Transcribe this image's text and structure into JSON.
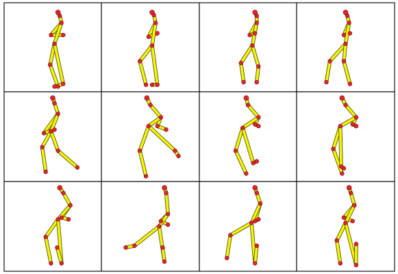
{
  "figure": {
    "rows": 3,
    "cols": 4,
    "colors": {
      "bone_outline": "#5a5a1c",
      "bone_fill": "#f6f600",
      "joint": "#e2242c",
      "joint_outline": "#8e1418",
      "grid_line": "#111111",
      "background": "#ffffff"
    }
  },
  "poses": [
    {
      "joints": [
        [
          0.56,
          0.1
        ],
        [
          0.58,
          0.14
        ],
        [
          0.6,
          0.22
        ],
        [
          0.62,
          0.36
        ],
        [
          0.48,
          0.36
        ],
        [
          0.52,
          0.46
        ],
        [
          0.47,
          0.7
        ],
        [
          0.56,
          0.95
        ],
        [
          0.52,
          0.95
        ],
        [
          0.62,
          0.92
        ]
      ]
    },
    {
      "joints": [
        [
          0.52,
          0.1
        ],
        [
          0.54,
          0.13
        ],
        [
          0.56,
          0.22
        ],
        [
          0.58,
          0.34
        ],
        [
          0.48,
          0.38
        ],
        [
          0.52,
          0.48
        ],
        [
          0.38,
          0.66
        ],
        [
          0.45,
          0.93
        ],
        [
          0.52,
          0.93
        ],
        [
          0.58,
          0.93
        ]
      ]
    },
    {
      "joints": [
        [
          0.58,
          0.1
        ],
        [
          0.6,
          0.14
        ],
        [
          0.6,
          0.22
        ],
        [
          0.58,
          0.34
        ],
        [
          0.52,
          0.36
        ],
        [
          0.55,
          0.48
        ],
        [
          0.42,
          0.68
        ],
        [
          0.45,
          0.9
        ],
        [
          0.6,
          0.9
        ],
        [
          0.62,
          0.72
        ]
      ]
    },
    {
      "joints": [
        [
          0.5,
          0.1
        ],
        [
          0.52,
          0.14
        ],
        [
          0.54,
          0.22
        ],
        [
          0.55,
          0.34
        ],
        [
          0.48,
          0.36
        ],
        [
          0.5,
          0.46
        ],
        [
          0.32,
          0.66
        ],
        [
          0.28,
          0.9
        ],
        [
          0.55,
          0.92
        ],
        [
          0.48,
          0.66
        ]
      ]
    },
    {
      "joints": [
        [
          0.5,
          0.06
        ],
        [
          0.52,
          0.12
        ],
        [
          0.56,
          0.24
        ],
        [
          0.52,
          0.42
        ],
        [
          0.4,
          0.46
        ],
        [
          0.48,
          0.44
        ],
        [
          0.38,
          0.62
        ],
        [
          0.42,
          0.9
        ],
        [
          0.78,
          0.85
        ],
        [
          0.56,
          0.66
        ]
      ]
    },
    {
      "joints": [
        [
          0.46,
          0.06
        ],
        [
          0.5,
          0.14
        ],
        [
          0.62,
          0.28
        ],
        [
          0.68,
          0.42
        ],
        [
          0.58,
          0.38
        ],
        [
          0.48,
          0.38
        ],
        [
          0.38,
          0.66
        ],
        [
          0.45,
          0.95
        ],
        [
          0.82,
          0.72
        ],
        [
          0.78,
          0.66
        ]
      ]
    },
    {
      "joints": [
        [
          0.48,
          0.06
        ],
        [
          0.5,
          0.14
        ],
        [
          0.62,
          0.28
        ],
        [
          0.62,
          0.38
        ],
        [
          0.58,
          0.36
        ],
        [
          0.44,
          0.4
        ],
        [
          0.36,
          0.66
        ],
        [
          0.48,
          0.92
        ],
        [
          0.6,
          0.78
        ],
        [
          0.56,
          0.8
        ]
      ]
    },
    {
      "joints": [
        [
          0.46,
          0.06
        ],
        [
          0.5,
          0.14
        ],
        [
          0.62,
          0.28
        ],
        [
          0.62,
          0.38
        ],
        [
          0.58,
          0.36
        ],
        [
          0.44,
          0.38
        ],
        [
          0.36,
          0.64
        ],
        [
          0.46,
          0.92
        ],
        [
          0.48,
          0.86
        ],
        [
          0.45,
          0.84
        ]
      ]
    },
    {
      "joints": [
        [
          0.58,
          0.06
        ],
        [
          0.62,
          0.12
        ],
        [
          0.7,
          0.26
        ],
        [
          0.68,
          0.42
        ],
        [
          0.6,
          0.4
        ],
        [
          0.56,
          0.42
        ],
        [
          0.42,
          0.62
        ],
        [
          0.48,
          0.92
        ],
        [
          0.55,
          0.74
        ],
        [
          0.6,
          0.92
        ]
      ]
    },
    {
      "joints": [
        [
          0.66,
          0.06
        ],
        [
          0.68,
          0.12
        ],
        [
          0.7,
          0.36
        ],
        [
          0.7,
          0.48
        ],
        [
          0.62,
          0.44
        ],
        [
          0.6,
          0.5
        ],
        [
          0.32,
          0.72
        ],
        [
          0.22,
          0.74
        ],
        [
          0.64,
          0.74
        ],
        [
          0.66,
          0.9
        ]
      ]
    },
    {
      "joints": [
        [
          0.58,
          0.06
        ],
        [
          0.6,
          0.12
        ],
        [
          0.64,
          0.24
        ],
        [
          0.62,
          0.42
        ],
        [
          0.58,
          0.44
        ],
        [
          0.54,
          0.46
        ],
        [
          0.3,
          0.6
        ],
        [
          0.26,
          0.86
        ],
        [
          0.6,
          0.72
        ],
        [
          0.58,
          0.92
        ]
      ]
    },
    {
      "joints": [
        [
          0.54,
          0.06
        ],
        [
          0.56,
          0.12
        ],
        [
          0.6,
          0.26
        ],
        [
          0.58,
          0.44
        ],
        [
          0.48,
          0.4
        ],
        [
          0.5,
          0.46
        ],
        [
          0.4,
          0.66
        ],
        [
          0.44,
          0.92
        ],
        [
          0.62,
          0.7
        ],
        [
          0.62,
          0.94
        ]
      ]
    }
  ]
}
